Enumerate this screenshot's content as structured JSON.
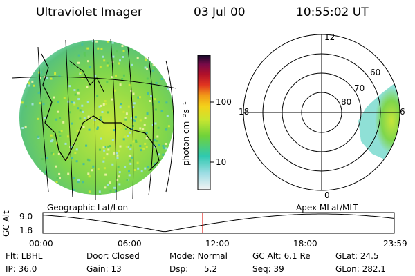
{
  "header": {
    "instrument": "Ultraviolet Imager",
    "date": "03 Jul 00",
    "time": "10:55:02 UT"
  },
  "geo_panel": {
    "label": "Geographic Lat/Lon"
  },
  "polar_panel": {
    "label": "Apex MLat/MLT",
    "mlt_labels": {
      "top": "12",
      "left": "18",
      "right": "6",
      "bottom": "0"
    },
    "lat_labels": [
      "60",
      "70",
      "80"
    ]
  },
  "colorbar": {
    "unit_label": "photon cm⁻²s⁻¹",
    "ticks": [
      "100",
      "10"
    ]
  },
  "altitude_plot": {
    "ylabel": "GC Alt",
    "yticks": [
      "9.0",
      "1.8"
    ],
    "xticks": [
      "00:00",
      "06:00",
      "12:00",
      "18:00",
      "23:59"
    ],
    "marker_time_hours": 10.92
  },
  "info": {
    "row1": {
      "flt": "Flt: LBHL",
      "door": "Door: Closed",
      "mode": "Mode: Normal",
      "gcalt": "GC Alt: 6.1 Re",
      "glat": "GLat:  24.5"
    },
    "row2": {
      "ip": "IP: 36.0",
      "gain": "Gain: 13",
      "dsp": "Dsp:      5.2",
      "seq": "Seq: 39",
      "glon": "GLon: 282.1"
    }
  },
  "colors": {
    "accent_marker": "#e0201a",
    "emission_low": "#7fd6cf",
    "emission_mid": "#5cc95a",
    "emission_high": "#c8e83a"
  }
}
